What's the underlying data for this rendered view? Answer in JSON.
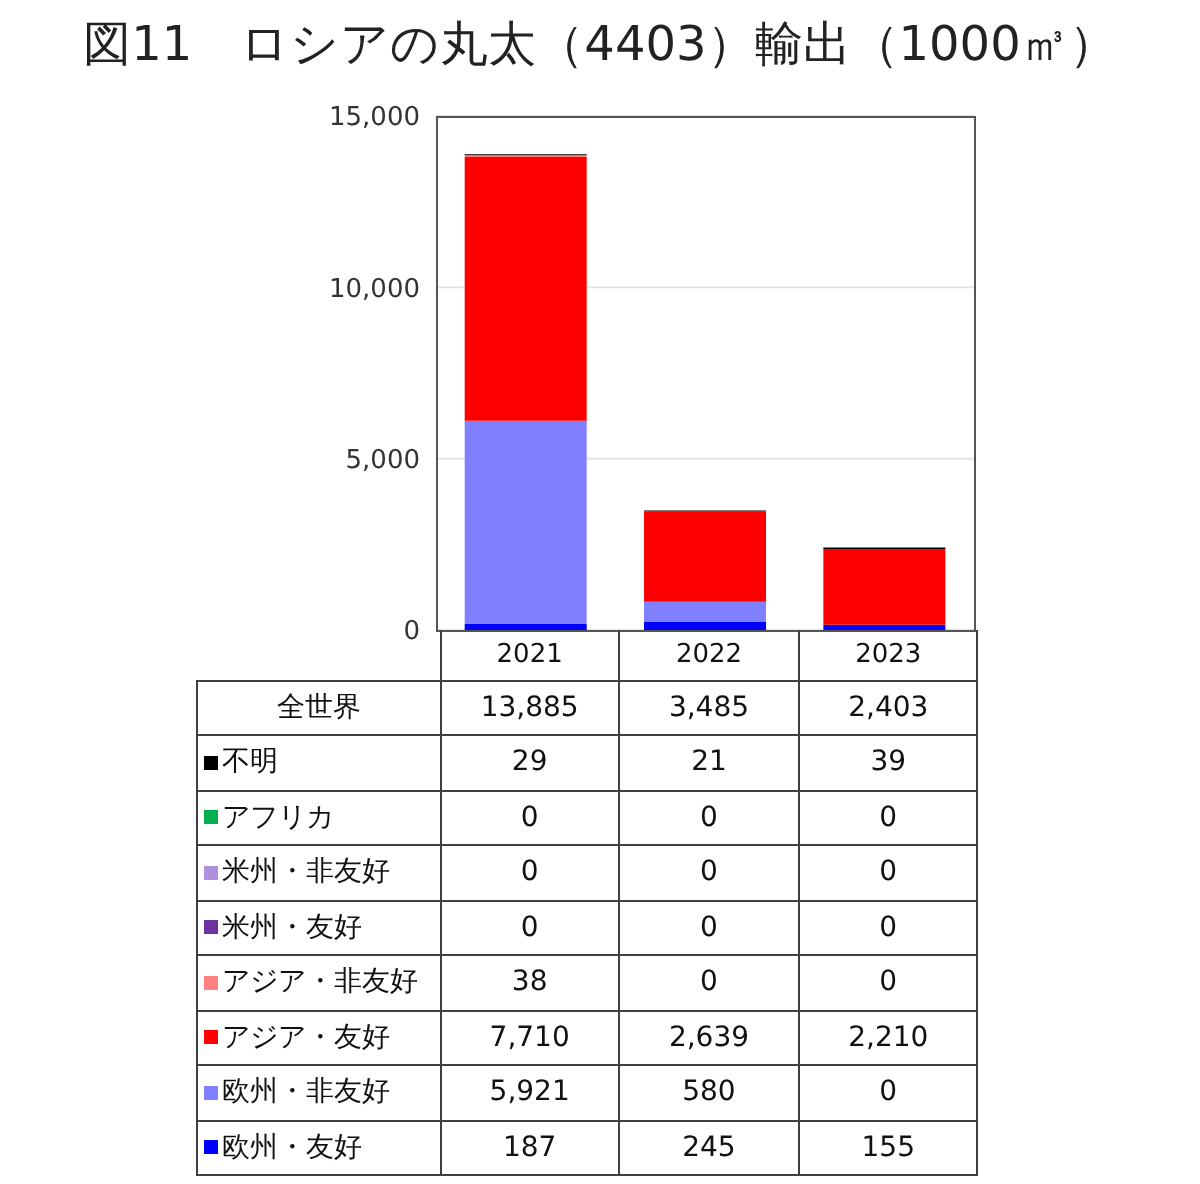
{
  "chart_data": {
    "type": "bar",
    "title": "図11　ロシアの丸太（4403）輸出（1000㎥）",
    "categories": [
      "2021",
      "2022",
      "2023"
    ],
    "stacked": true,
    "series": [
      {
        "name": "欧州・友好",
        "color": "#0000ff",
        "values": [
          187,
          245,
          155
        ],
        "value_labels": [
          "187",
          "245",
          "155"
        ]
      },
      {
        "name": "欧州・非友好",
        "color": "#8080ff",
        "values": [
          5921,
          580,
          0
        ],
        "value_labels": [
          "5,921",
          "580",
          "0"
        ]
      },
      {
        "name": "アジア・友好",
        "color": "#ff0000",
        "values": [
          7710,
          2639,
          2210
        ],
        "value_labels": [
          "7,710",
          "2,639",
          "2,210"
        ]
      },
      {
        "name": "アジア・非友好",
        "color": "#ff8080",
        "values": [
          38,
          0,
          0
        ],
        "value_labels": [
          "38",
          "0",
          "0"
        ]
      },
      {
        "name": "米州・友好",
        "color": "#7030a0",
        "values": [
          0,
          0,
          0
        ],
        "value_labels": [
          "0",
          "0",
          "0"
        ]
      },
      {
        "name": "米州・非友好",
        "color": "#b18fe0",
        "values": [
          0,
          0,
          0
        ],
        "value_labels": [
          "0",
          "0",
          "0"
        ]
      },
      {
        "name": "アフリカ",
        "color": "#00b050",
        "values": [
          0,
          0,
          0
        ],
        "value_labels": [
          "0",
          "0",
          "0"
        ]
      },
      {
        "name": "不明",
        "color": "#000000",
        "values": [
          29,
          21,
          39
        ],
        "value_labels": [
          "29",
          "21",
          "39"
        ]
      }
    ],
    "annotations": [
      "全世界"
    ],
    "totals": [
      "13,885",
      "3,485",
      "2,403"
    ],
    "ylim": [
      0,
      15000
    ],
    "yticks": [
      {
        "value": 0,
        "label": "0"
      },
      {
        "value": 5000,
        "label": "5,000"
      },
      {
        "value": 10000,
        "label": "10,000"
      },
      {
        "value": 15000,
        "label": "15,000"
      }
    ],
    "grid": "y",
    "legend": "bottom"
  }
}
